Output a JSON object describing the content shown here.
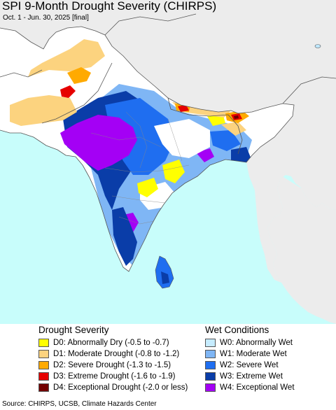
{
  "header": {
    "title": "SPI 9-Month Drought Severity (CHIRPS)",
    "subtitle": "Oct. 1 - Jun. 30, 2025 [final]"
  },
  "legend": {
    "drought": {
      "heading": "Drought Severity",
      "items": [
        {
          "label": "D0: Abnormally Dry (-0.5 to -0.7)",
          "color": "#ffff00"
        },
        {
          "label": "D1: Moderate Drought (-0.8 to -1.2)",
          "color": "#fcd37f"
        },
        {
          "label": "D2: Severe Drought (-1.3 to -1.5)",
          "color": "#ffaa00"
        },
        {
          "label": "D3: Extreme Drought (-1.6 to -1.9)",
          "color": "#e60000"
        },
        {
          "label": "D4: Exceptional Drought (-2.0 or less)",
          "color": "#730000"
        }
      ]
    },
    "wet": {
      "heading": "Wet Conditions",
      "items": [
        {
          "label": "W0: Abnormally Wet",
          "color": "#c6ecff"
        },
        {
          "label": "W1: Moderate Wet",
          "color": "#7fb6f5"
        },
        {
          "label": "W2: Severe Wet",
          "color": "#1f6ef0"
        },
        {
          "label": "W3: Extreme Wet",
          "color": "#0a3da8"
        },
        {
          "label": "W4: Exceptional Wet",
          "color": "#a400f5"
        }
      ]
    }
  },
  "footer": {
    "source": "Source: CHIRPS, UCSB, Climate Hazards Center"
  },
  "colors": {
    "ocean": "#c8fdfb",
    "land_outside": "#ececec",
    "land_neutral": "#ffffff"
  }
}
